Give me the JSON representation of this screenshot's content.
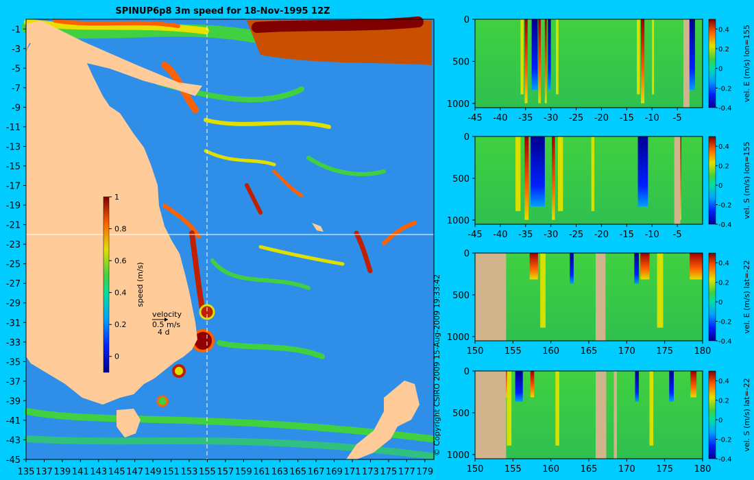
{
  "title": "SPINUP6p8 3m speed for 18-Nov-1995 12Z",
  "copyright": "© Copyright CSIRO 2009   15-Aug-2009 19:33:42",
  "colors": {
    "background": "#00ccff",
    "land": "#ffcc99",
    "land_section": "#d2b48c"
  },
  "chart_data": [
    {
      "type": "heatmap",
      "name": "map",
      "title": "SPINUP6p8 3m speed for 18-Nov-1995 12Z",
      "x_ticks": [
        "135",
        "137",
        "139",
        "141",
        "143",
        "145",
        "147",
        "149",
        "151",
        "153",
        "155",
        "157",
        "159",
        "161",
        "163",
        "165",
        "167",
        "169",
        "171",
        "173",
        "175",
        "177",
        "179"
      ],
      "y_ticks": [
        "-1",
        "-3",
        "-5",
        "-7",
        "-9",
        "-11",
        "-13",
        "-15",
        "-17",
        "-19",
        "-21",
        "-23",
        "-25",
        "-27",
        "-29",
        "-31",
        "-33",
        "-35",
        "-37",
        "-39",
        "-41",
        "-43",
        "-45"
      ],
      "xlim": [
        135,
        180
      ],
      "ylim": [
        -45,
        0
      ],
      "section_lines": {
        "lon": 155,
        "lat": -22
      },
      "colorbar": {
        "label": "speed (m/s)",
        "range": [
          -0.1,
          1
        ],
        "ticks": [
          "0",
          "0.2",
          "0.4",
          "0.6",
          "0.8",
          "1"
        ]
      },
      "velocity_legend": {
        "title": "velocity",
        "speed": "0.5 m/s",
        "days": "4 d"
      }
    },
    {
      "type": "heatmap",
      "name": "section-1",
      "x_ticks": [
        "-45",
        "-40",
        "-35",
        "-30",
        "-25",
        "-20",
        "-15",
        "-10",
        "-5"
      ],
      "y_ticks": [
        "0",
        "500",
        "1000"
      ],
      "xlim": [
        -45,
        0
      ],
      "ylim": [
        0,
        1050
      ],
      "colorbar": {
        "label": "vel. E (m/s) lon=155",
        "range": [
          -0.4,
          0.5
        ],
        "ticks": [
          "0.4",
          "0.2",
          "0",
          "-0.2",
          "-0.4"
        ]
      }
    },
    {
      "type": "heatmap",
      "name": "section-2",
      "x_ticks": [
        "-45",
        "-40",
        "-35",
        "-30",
        "-25",
        "-20",
        "-15",
        "-10",
        "-5"
      ],
      "y_ticks": [
        "0",
        "500",
        "1000"
      ],
      "xlim": [
        -45,
        0
      ],
      "ylim": [
        0,
        1050
      ],
      "colorbar": {
        "label": "vel. S (m/s) lon=155",
        "range": [
          -0.4,
          0.5
        ],
        "ticks": [
          "0.4",
          "0.2",
          "0",
          "-0.2",
          "-0.4"
        ]
      }
    },
    {
      "type": "heatmap",
      "name": "section-3",
      "x_ticks": [
        "150",
        "155",
        "160",
        "165",
        "170",
        "175",
        "180"
      ],
      "y_ticks": [
        "0",
        "500",
        "1000"
      ],
      "xlim": [
        150,
        180
      ],
      "ylim": [
        0,
        1050
      ],
      "colorbar": {
        "label": "vel. E (m/s) lat=-22",
        "range": [
          -0.4,
          0.5
        ],
        "ticks": [
          "0.4",
          "0.2",
          "0",
          "-0.2",
          "-0.4"
        ]
      }
    },
    {
      "type": "heatmap",
      "name": "section-4",
      "x_ticks": [
        "150",
        "155",
        "160",
        "165",
        "170",
        "175",
        "180"
      ],
      "y_ticks": [
        "0",
        "500",
        "1000"
      ],
      "xlim": [
        150,
        180
      ],
      "ylim": [
        0,
        1050
      ],
      "colorbar": {
        "label": "vel. S (m/s) lat=-22",
        "range": [
          -0.4,
          0.5
        ],
        "ticks": [
          "0.4",
          "0.2",
          "0",
          "-0.2",
          "-0.4"
        ]
      }
    }
  ]
}
